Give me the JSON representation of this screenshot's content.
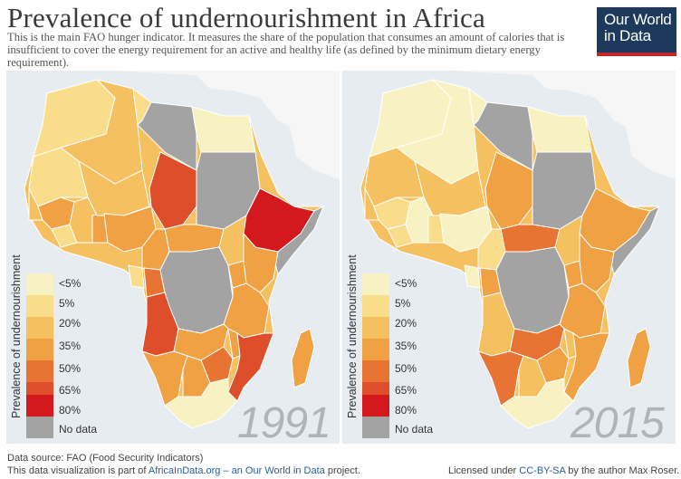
{
  "title": "Prevalence of undernourishment in Africa",
  "subtitle": "This is the main FAO hunger indicator. It measures the share of the population that consumes an amount of calories that is insufficient to cover the energy requirement for an active and healthy life (as defined by the minimum dietary energy requirement).",
  "logo": {
    "line1": "Our World",
    "line2": "in Data"
  },
  "legend": {
    "title": "Prevalence of undernourishment",
    "items": [
      {
        "label": "<5%",
        "color": "#f8f2c2"
      },
      {
        "label": "5%",
        "color": "#f9dd8a"
      },
      {
        "label": "20%",
        "color": "#f5c160"
      },
      {
        "label": "35%",
        "color": "#f0a143"
      },
      {
        "label": "50%",
        "color": "#e87434"
      },
      {
        "label": "65%",
        "color": "#de4e2b"
      },
      {
        "label": "80%",
        "color": "#d3191d"
      },
      {
        "label": "No data",
        "color": "#a3a3a3"
      }
    ]
  },
  "maps": [
    {
      "year": "1991"
    },
    {
      "year": "2015"
    }
  ],
  "footer": {
    "source": "Data source: FAO (Food Security Indicators)",
    "part_prefix": "This data visualization is part of ",
    "part_link": "AfricaInData.org – an Our World in Data",
    "part_suffix": " project.",
    "license_prefix": "Licensed under ",
    "license_link": "CC-BY-SA",
    "license_suffix": " by the author Max Roser."
  }
}
